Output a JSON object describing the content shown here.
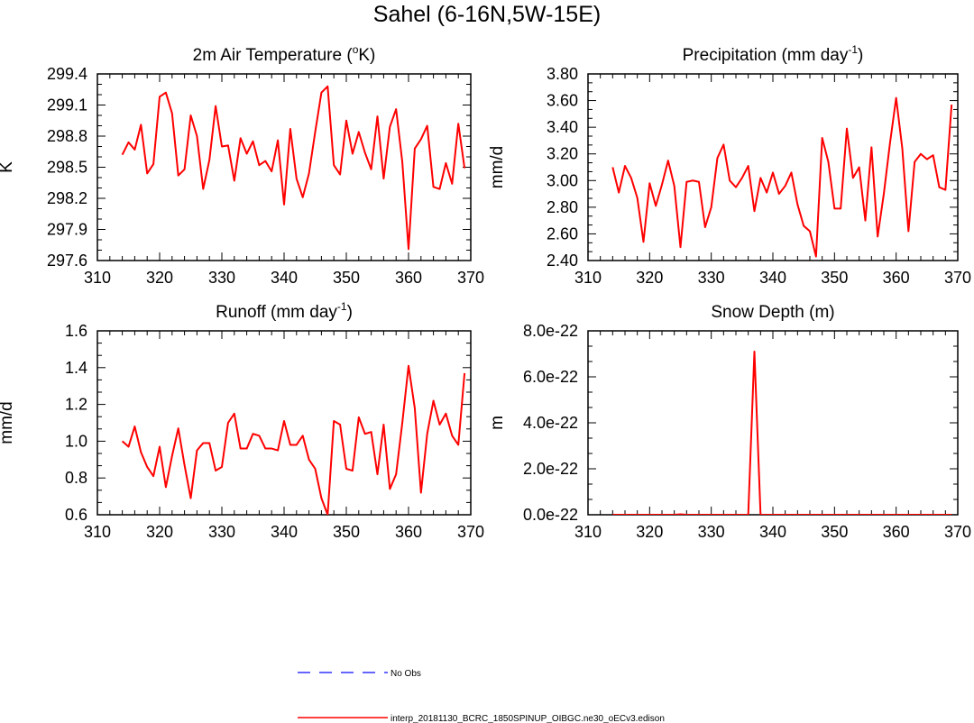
{
  "figure": {
    "title": "Sahel (6-16N,5W-15E)"
  },
  "colors": {
    "model_line": "#ff0000",
    "obs_line": "#3333ff",
    "axis": "#000000"
  },
  "legend": {
    "obs_label": "No Obs",
    "model_label": "interp_20181130_BCRC_1850SPINUP_OIBGC.ne30_oECv3.edison"
  },
  "chart_data": [
    {
      "type": "line",
      "title": "2m Air Temperature (",
      "title_sup": "o",
      "title_tail": "K)",
      "xlabel": "",
      "ylabel": "K",
      "xlim": [
        310,
        370
      ],
      "ylim": [
        297.6,
        299.4
      ],
      "xticks": [
        "310",
        "320",
        "330",
        "340",
        "350",
        "360",
        "370"
      ],
      "yticks": [
        "297.6",
        "297.9",
        "298.2",
        "298.5",
        "298.8",
        "299.1",
        "299.4"
      ],
      "x_start": 314,
      "values": [
        298.62,
        298.74,
        298.67,
        298.91,
        298.44,
        298.53,
        299.18,
        299.22,
        299.02,
        298.42,
        298.48,
        299.0,
        298.8,
        298.29,
        298.57,
        299.09,
        298.7,
        298.71,
        298.37,
        298.78,
        298.63,
        298.75,
        298.52,
        298.56,
        298.46,
        298.76,
        298.14,
        298.87,
        298.39,
        298.21,
        298.44,
        298.84,
        299.22,
        299.28,
        298.52,
        298.43,
        298.95,
        298.63,
        298.84,
        298.64,
        298.48,
        298.99,
        298.39,
        298.89,
        299.06,
        298.55,
        297.71,
        298.68,
        298.77,
        298.9,
        298.31,
        298.29,
        298.54,
        298.34,
        298.92,
        298.49
      ]
    },
    {
      "type": "line",
      "title": "Precipitation (mm day",
      "title_sup": "-1",
      "title_tail": ")",
      "xlabel": "",
      "ylabel": "mm/d",
      "xlim": [
        310,
        370
      ],
      "ylim": [
        2.4,
        3.8
      ],
      "xticks": [
        "310",
        "320",
        "330",
        "340",
        "350",
        "360",
        "370"
      ],
      "yticks": [
        "2.40",
        "2.60",
        "2.80",
        "3.00",
        "3.20",
        "3.40",
        "3.60",
        "3.80"
      ],
      "x_start": 314,
      "values": [
        3.1,
        2.91,
        3.11,
        3.02,
        2.87,
        2.54,
        2.98,
        2.81,
        2.97,
        3.15,
        2.96,
        2.5,
        2.99,
        3.0,
        2.99,
        2.65,
        2.8,
        3.17,
        3.27,
        3.0,
        2.95,
        3.02,
        3.11,
        2.77,
        3.02,
        2.91,
        3.06,
        2.9,
        2.96,
        3.06,
        2.82,
        2.66,
        2.62,
        2.43,
        3.32,
        3.14,
        2.79,
        2.79,
        3.39,
        3.02,
        3.1,
        2.7,
        3.25,
        2.58,
        2.9,
        3.28,
        3.62,
        3.24,
        2.62,
        3.14,
        3.2,
        3.16,
        3.19,
        2.95,
        2.93,
        3.57
      ]
    },
    {
      "type": "line",
      "title": "Runoff (mm day",
      "title_sup": "-1",
      "title_tail": ")",
      "xlabel": "",
      "ylabel": "mm/d",
      "xlim": [
        310,
        370
      ],
      "ylim": [
        0.6,
        1.6
      ],
      "xticks": [
        "310",
        "320",
        "330",
        "340",
        "350",
        "360",
        "370"
      ],
      "yticks": [
        "0.6",
        "0.8",
        "1.0",
        "1.2",
        "1.4",
        "1.6"
      ],
      "x_start": 314,
      "values": [
        1.0,
        0.97,
        1.08,
        0.94,
        0.86,
        0.81,
        0.97,
        0.75,
        0.92,
        1.07,
        0.87,
        0.69,
        0.95,
        0.99,
        0.99,
        0.84,
        0.86,
        1.1,
        1.15,
        0.96,
        0.96,
        1.04,
        1.03,
        0.96,
        0.96,
        0.95,
        1.11,
        0.98,
        0.98,
        1.03,
        0.9,
        0.85,
        0.69,
        0.6,
        1.11,
        1.09,
        0.85,
        0.84,
        1.13,
        1.04,
        1.05,
        0.82,
        1.09,
        0.74,
        0.82,
        1.1,
        1.41,
        1.18,
        0.72,
        1.04,
        1.22,
        1.09,
        1.15,
        1.03,
        0.98,
        1.37
      ]
    },
    {
      "type": "line",
      "title": "Snow Depth (m)",
      "title_sup": "",
      "title_tail": "",
      "xlabel": "",
      "ylabel": "m",
      "xlim": [
        310,
        370
      ],
      "ylim": [
        0,
        8e-22
      ],
      "xticks": [
        "310",
        "320",
        "330",
        "340",
        "350",
        "360",
        "370"
      ],
      "yticks": [
        "0.0e-22",
        "2.0e-22",
        "4.0e-22",
        "6.0e-22",
        "8.0e-22"
      ],
      "x_start": 314,
      "values": [
        0,
        0,
        0,
        0,
        0,
        0,
        0,
        0,
        0,
        0,
        0,
        2e-24,
        0,
        0,
        0,
        0,
        0,
        0,
        0,
        0,
        0,
        0,
        0,
        7.1e-22,
        0,
        0,
        0,
        0,
        0,
        0,
        0,
        0,
        0,
        0,
        0,
        0,
        0,
        0,
        0,
        0,
        0,
        0,
        0,
        0,
        0,
        0,
        0,
        0,
        0,
        0,
        0,
        0,
        0,
        0,
        0,
        0
      ]
    }
  ]
}
